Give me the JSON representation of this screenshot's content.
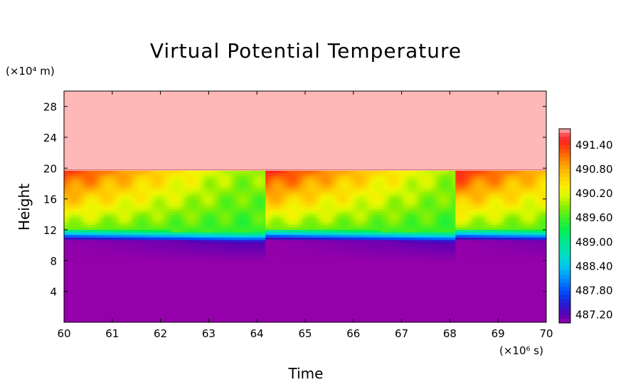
{
  "chart_data": {
    "type": "heatmap",
    "title": "Virtual Potential Temperature",
    "xlabel": "Time",
    "ylabel": "Height",
    "x_unit": "(×10⁶ s)",
    "y_unit": "(×10⁴ m)",
    "xlim": [
      60,
      70
    ],
    "ylim": [
      0,
      30
    ],
    "x_ticks": [
      "60",
      "61",
      "62",
      "63",
      "64",
      "65",
      "66",
      "67",
      "68",
      "69",
      "70"
    ],
    "y_ticks": [
      "4",
      "8",
      "12",
      "16",
      "20",
      "24",
      "28"
    ],
    "colorbar": {
      "labels": [
        "491.40",
        "490.80",
        "490.20",
        "489.60",
        "489.00",
        "488.40",
        "487.80",
        "487.20"
      ],
      "min": 487.0,
      "max": 491.8,
      "top_color": "#ffb8b8",
      "bottom_color": "#9400aa"
    },
    "regions": {
      "stratosphere": {
        "y_range": [
          19.8,
          30
        ],
        "value": 491.8,
        "color": "#ffb8b8"
      },
      "mixed_layer": {
        "y_range": [
          11.5,
          19.8
        ],
        "value_range": [
          489.4,
          491.6
        ]
      },
      "inversion": {
        "y_range": [
          10.9,
          12.2
        ],
        "value_range": [
          487.2,
          489.4
        ]
      },
      "lower_layer": {
        "y_range": [
          0,
          10.9
        ],
        "value": 487.0,
        "color": "#9400aa"
      }
    },
    "periodic_resets_at": [
      64.2,
      68.1
    ]
  }
}
